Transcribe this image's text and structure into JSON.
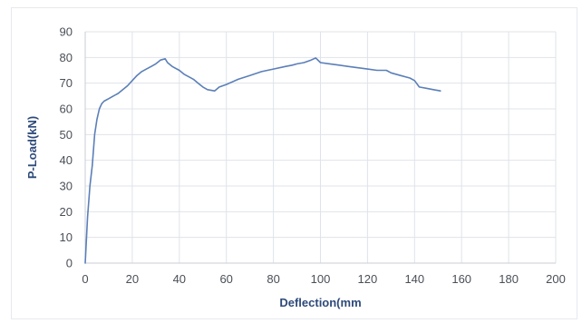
{
  "chart_data": {
    "type": "line",
    "title": "",
    "xlabel": "Deflection(mm",
    "ylabel": "P-Load(kN)",
    "xlim": [
      0,
      200
    ],
    "ylim": [
      0,
      90
    ],
    "xticks": [
      0,
      20,
      40,
      60,
      80,
      100,
      120,
      140,
      160,
      180,
      200
    ],
    "yticks": [
      0,
      10,
      20,
      30,
      40,
      50,
      60,
      70,
      80,
      90
    ],
    "grid": true,
    "legend": "none",
    "series": [
      {
        "color": "#5b7fb8",
        "x": [
          0,
          1,
          2,
          3,
          4,
          5,
          6,
          7,
          8,
          10,
          12,
          14,
          16,
          18,
          20,
          22,
          24,
          26,
          28,
          30,
          32,
          34,
          35,
          37,
          40,
          42,
          44,
          46,
          48,
          50,
          52,
          55,
          57,
          60,
          65,
          70,
          75,
          80,
          85,
          88,
          90,
          93,
          96,
          98,
          100,
          104,
          108,
          112,
          116,
          120,
          124,
          128,
          130,
          134,
          138,
          140,
          142,
          145,
          148,
          151
        ],
        "y": [
          0,
          18,
          30,
          38,
          50,
          56,
          60,
          62,
          63,
          64,
          65,
          66,
          67.5,
          69,
          71,
          73,
          74.5,
          75.5,
          76.5,
          77.5,
          79,
          79.5,
          78,
          76.5,
          75,
          73.5,
          72.5,
          71.5,
          70,
          68.5,
          67.5,
          67,
          68.5,
          69.5,
          71.5,
          73,
          74.5,
          75.5,
          76.5,
          77,
          77.5,
          78,
          79,
          79.8,
          78,
          77.5,
          77,
          76.5,
          76,
          75.5,
          75,
          75,
          74,
          73,
          72,
          71,
          68.5,
          68,
          67.5,
          67
        ]
      }
    ]
  }
}
